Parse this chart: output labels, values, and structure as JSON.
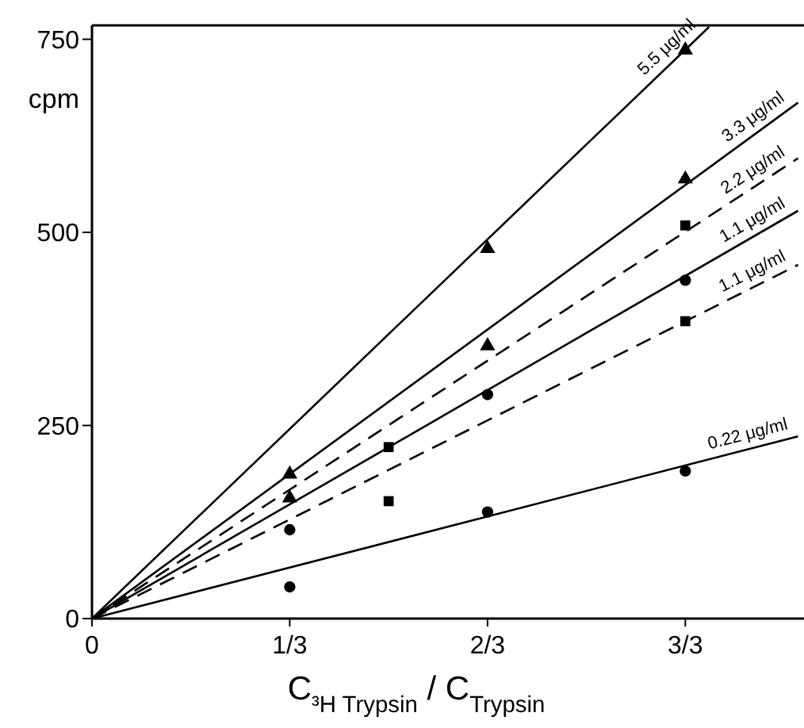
{
  "chart_data": {
    "type": "scatter",
    "xlabel": "C$_{³H Trypsin}$ / C$_{Trypsin}$",
    "ylabel": "cpm",
    "xlim": [
      0,
      1.2
    ],
    "ylim": [
      0,
      768
    ],
    "xticks": [
      0,
      {
        "value": 0.3333,
        "label": "1/3"
      },
      {
        "value": 0.6667,
        "label": "2/3"
      },
      {
        "value": 1,
        "label": "3/3"
      }
    ],
    "yticks": [
      0,
      250,
      500,
      750
    ],
    "grid": false,
    "series": [
      {
        "type": "line",
        "name": "5.5 μg/ml",
        "color": "#000000",
        "x": [
          0,
          1.04
        ],
        "values": [
          0,
          766
        ],
        "line_style": "solid"
      },
      {
        "type": "line",
        "name": "3.3 μg/ml",
        "color": "#000000",
        "x": [
          0,
          1.19
        ],
        "values": [
          0,
          668
        ],
        "line_style": "solid"
      },
      {
        "type": "line",
        "name": "2.2 μg/ml",
        "color": "#000000",
        "x": [
          0,
          1.19
        ],
        "values": [
          0,
          596
        ],
        "line_style": "dashed"
      },
      {
        "type": "line",
        "name": "1.1 μg/ml",
        "color": "#000000",
        "x": [
          0,
          1.19
        ],
        "values": [
          0,
          528
        ],
        "line_style": "solid"
      },
      {
        "type": "line",
        "name": "1.1 μg/ml",
        "color": "#000000",
        "x": [
          0,
          1.19
        ],
        "values": [
          0,
          458
        ],
        "line_style": "dashed"
      },
      {
        "type": "line",
        "name": "0.22 μg/ml",
        "color": "#000000",
        "x": [
          0,
          1.19
        ],
        "values": [
          0,
          236
        ],
        "line_style": "solid"
      },
      {
        "color": "#000000",
        "marker": "triangle",
        "x": [
          0.3333,
          0.6667,
          1
        ],
        "values": [
          187,
          479,
          736
        ]
      },
      {
        "color": "#000000",
        "marker": "triangle",
        "x": [
          0.3333,
          0.6667,
          1
        ],
        "values": [
          156,
          353,
          569
        ]
      },
      {
        "color": "#000000",
        "marker": "square",
        "x": [
          0.5,
          1
        ],
        "values": [
          222,
          509
        ]
      },
      {
        "color": "#000000",
        "marker": "circle",
        "x": [
          0.3333,
          0.6667,
          1
        ],
        "values": [
          115,
          290,
          438
        ]
      },
      {
        "color": "#000000",
        "marker": "square",
        "x": [
          0.5,
          1
        ],
        "values": [
          152,
          385
        ]
      },
      {
        "color": "#000000",
        "marker": "circle",
        "x": [
          0.3333,
          0.6667,
          1
        ],
        "values": [
          41,
          138,
          191
        ]
      }
    ]
  }
}
